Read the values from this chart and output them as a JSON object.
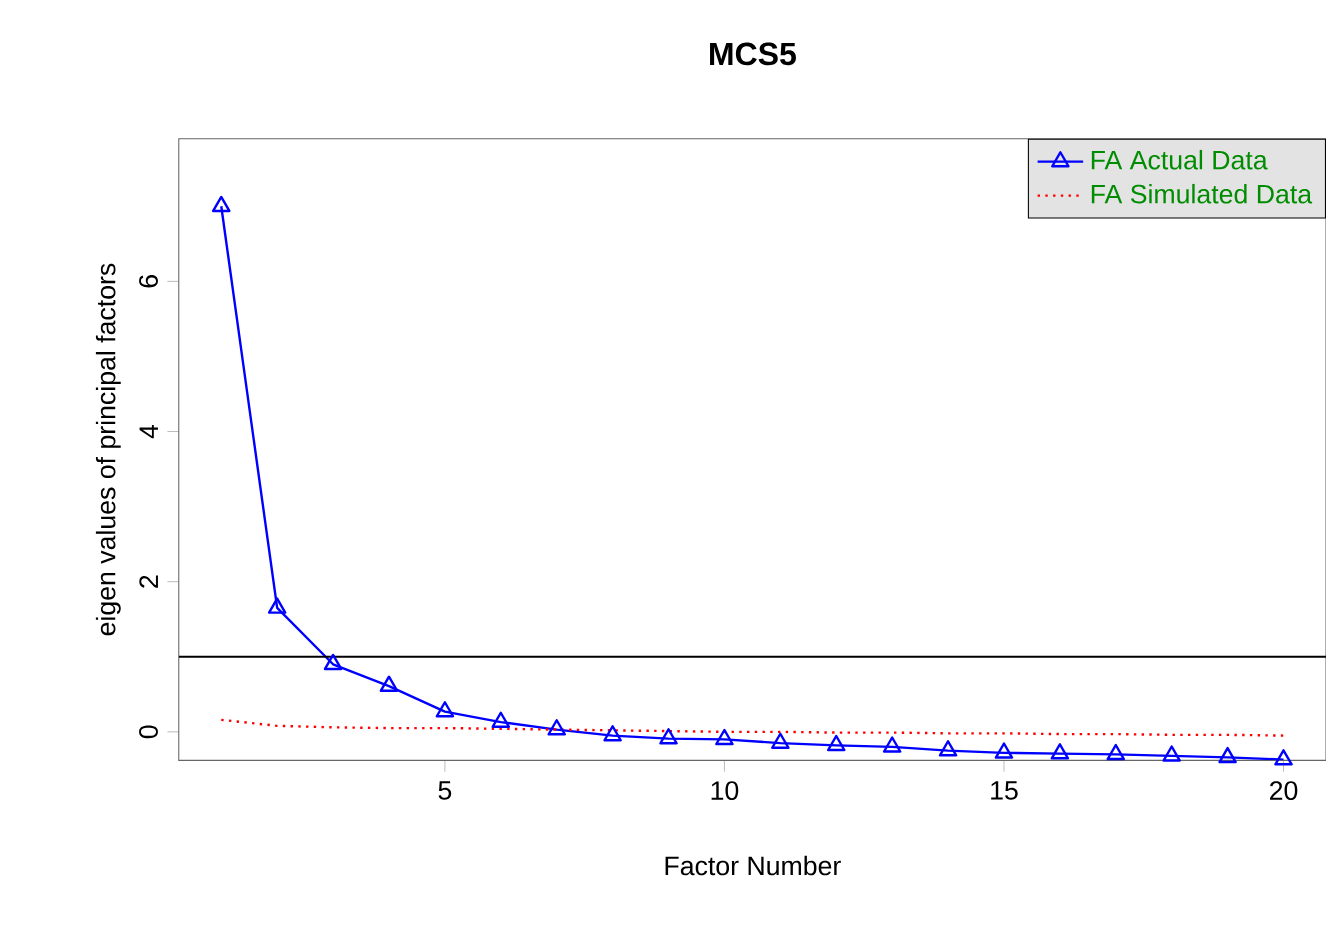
{
  "chart_data": {
    "type": "line",
    "title": "MCS5",
    "xlabel": "Factor Number",
    "ylabel": "eigen values of principal factors",
    "x": [
      1,
      2,
      3,
      4,
      5,
      6,
      7,
      8,
      9,
      10,
      11,
      12,
      13,
      14,
      15,
      16,
      17,
      18,
      19,
      20
    ],
    "series": [
      {
        "name": "FA  Actual Data",
        "color": "#0000ff",
        "marker": "triangle",
        "line_style": "solid",
        "values": [
          7.0,
          1.65,
          0.9,
          0.61,
          0.27,
          0.13,
          0.03,
          -0.05,
          -0.09,
          -0.1,
          -0.15,
          -0.18,
          -0.2,
          -0.25,
          -0.28,
          -0.29,
          -0.3,
          -0.32,
          -0.34,
          -0.37
        ]
      },
      {
        "name": "FA  Simulated Data",
        "color": "#ff0000",
        "marker": "none",
        "line_style": "dotted",
        "values": [
          0.16,
          0.08,
          0.06,
          0.05,
          0.05,
          0.04,
          0.03,
          0.02,
          0.01,
          0.0,
          0.0,
          -0.01,
          -0.01,
          -0.02,
          -0.02,
          -0.03,
          -0.03,
          -0.04,
          -0.04,
          -0.05
        ]
      }
    ],
    "xlim": [
      0.24,
      20.76
    ],
    "ylim": [
      -0.38,
      7.9
    ],
    "xticks": [
      5,
      10,
      15,
      20
    ],
    "yticks": [
      0,
      2,
      4,
      6
    ],
    "ref_lines": [
      {
        "axis": "y",
        "value": 1,
        "color": "#000000"
      }
    ],
    "legend": "top right",
    "grid": false
  }
}
